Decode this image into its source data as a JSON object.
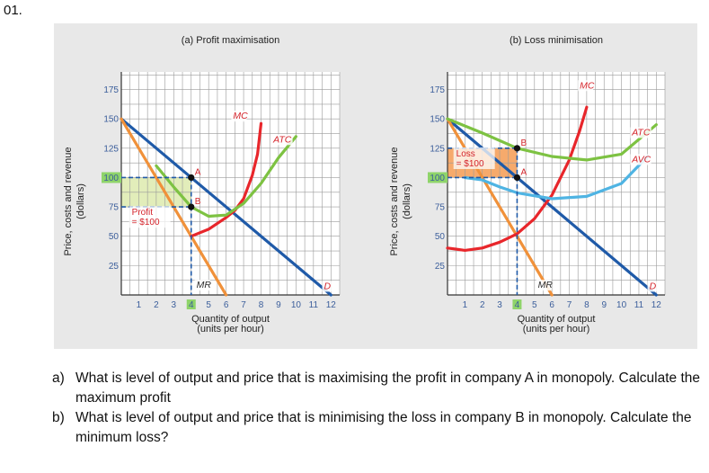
{
  "question_number": "01.",
  "chart_data": [
    {
      "type": "line",
      "title": "(a) Profit maximisation",
      "xlabel": "Quantity of output",
      "xlabel_units": "(units per hour)",
      "ylabel": "Price, costs and revenue",
      "ylabel_units": "(dollars)",
      "xlim": [
        0,
        12.5
      ],
      "ylim": [
        0,
        190
      ],
      "x_ticks": [
        "1",
        "2",
        "3",
        "4",
        "5",
        "6",
        "7",
        "8",
        "9",
        "10",
        "11",
        "12"
      ],
      "y_ticks": [
        "25",
        "50",
        "75",
        "100",
        "125",
        "150",
        "175"
      ],
      "highlight_x": "4",
      "highlight_y": "100",
      "series": [
        {
          "name": "D",
          "color": "#1f5aa8",
          "points": [
            [
              0,
              150
            ],
            [
              12,
              0
            ]
          ]
        },
        {
          "name": "MR",
          "color": "#f0913a",
          "points": [
            [
              0,
              150
            ],
            [
              6,
              0
            ]
          ]
        },
        {
          "name": "MC",
          "color": "#e8262b",
          "points": [
            [
              4,
              50
            ],
            [
              5,
              56
            ],
            [
              6,
              66
            ],
            [
              6.5,
              72
            ],
            [
              7,
              82
            ],
            [
              7.5,
              102
            ],
            [
              7.8,
              120
            ],
            [
              8,
              146
            ]
          ]
        },
        {
          "name": "ATC",
          "color": "#7dc242",
          "points": [
            [
              2,
              110
            ],
            [
              3,
              92
            ],
            [
              4,
              75
            ],
            [
              5,
              67
            ],
            [
              6,
              68
            ],
            [
              7,
              78
            ],
            [
              8,
              95
            ],
            [
              9,
              117
            ],
            [
              10,
              135
            ]
          ]
        }
      ],
      "points": [
        {
          "label": "A",
          "x": 4,
          "y": 100
        },
        {
          "label": "B",
          "x": 4,
          "y": 75
        }
      ],
      "area": {
        "label": "Profit",
        "value": "= $100",
        "x": [
          0,
          4
        ],
        "y": [
          75,
          100
        ],
        "color": "#e0ecb6"
      }
    },
    {
      "type": "line",
      "title": "(b) Loss minimisation",
      "xlabel": "Quantity of output",
      "xlabel_units": "(units per hour)",
      "ylabel": "Price, costs and revenue",
      "ylabel_units": "(dollars)",
      "xlim": [
        0,
        12.5
      ],
      "ylim": [
        0,
        190
      ],
      "x_ticks": [
        "1",
        "2",
        "3",
        "4",
        "5",
        "6",
        "7",
        "8",
        "9",
        "10",
        "11",
        "12"
      ],
      "y_ticks": [
        "25",
        "50",
        "75",
        "100",
        "125",
        "150",
        "175"
      ],
      "highlight_x": "4",
      "highlight_y": "100",
      "series": [
        {
          "name": "D",
          "color": "#1f5aa8",
          "points": [
            [
              0,
              150
            ],
            [
              12,
              0
            ]
          ]
        },
        {
          "name": "MR",
          "color": "#f0913a",
          "points": [
            [
              0,
              150
            ],
            [
              6,
              0
            ]
          ]
        },
        {
          "name": "MC",
          "color": "#e8262b",
          "points": [
            [
              0,
              40
            ],
            [
              1,
              38
            ],
            [
              2,
              40
            ],
            [
              3,
              45
            ],
            [
              4,
              52
            ],
            [
              5,
              65
            ],
            [
              6,
              85
            ],
            [
              7,
              115
            ],
            [
              7.6,
              140
            ],
            [
              8,
              160
            ]
          ]
        },
        {
          "name": "ATC",
          "color": "#7dc242",
          "points": [
            [
              0,
              150
            ],
            [
              2,
              138
            ],
            [
              4,
              125
            ],
            [
              6,
              118
            ],
            [
              8,
              115
            ],
            [
              10,
              120
            ],
            [
              12,
              145
            ]
          ]
        },
        {
          "name": "AVC",
          "color": "#4fb4e3",
          "points": [
            [
              1,
              100
            ],
            [
              2,
              98
            ],
            [
              3,
              92
            ],
            [
              4,
              87
            ],
            [
              6,
              82
            ],
            [
              8,
              84
            ],
            [
              10,
              95
            ],
            [
              11.5,
              118
            ]
          ]
        }
      ],
      "points": [
        {
          "label": "A",
          "x": 4,
          "y": 100
        },
        {
          "label": "B",
          "x": 4,
          "y": 125
        }
      ],
      "area": {
        "label": "Loss",
        "value": "= $100",
        "x": [
          0,
          4
        ],
        "y": [
          100,
          125
        ],
        "color": "#f6a564"
      }
    }
  ],
  "questions": [
    {
      "label": "a)",
      "text": "What is level of output and price that is maximising the profit in company A in monopoly. Calculate the maximum profit"
    },
    {
      "label": "b)",
      "text": "What is level of output and price that is minimising the loss in company B in monopoly. Calculate the minimum loss?"
    }
  ]
}
